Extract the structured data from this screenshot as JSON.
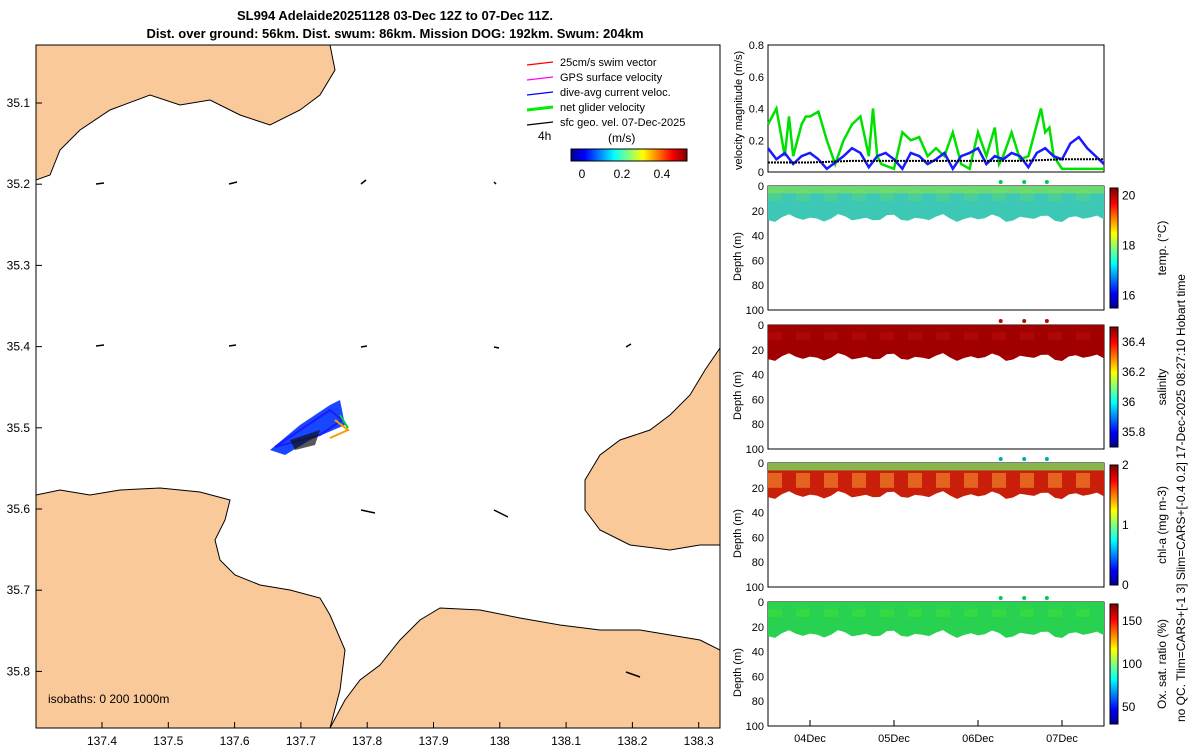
{
  "header": {
    "line1": "SL994 Adelaide20251128 03-Dec 12Z to 07-Dec 11Z.",
    "line2": "Dist. over ground: 56km. Dist. swum: 86km. Mission DOG: 192km. Swum: 204km"
  },
  "map": {
    "lon_ticks": [
      "137.4",
      "137.5",
      "137.6",
      "137.7",
      "137.8",
      "137.9",
      "138",
      "138.1",
      "138.2",
      "138.3"
    ],
    "lat_ticks": [
      "35.1",
      "35.2",
      "35.3",
      "35.4",
      "35.5",
      "35.6",
      "35.7",
      "35.8"
    ],
    "isobaths_label": "isobaths: 0   200  1000m",
    "legend": [
      {
        "label": "25cm/s swim vector",
        "color": "#ff0000"
      },
      {
        "label": "GPS surface velocity",
        "color": "#ff00ff"
      },
      {
        "label": "dive-avg current veloc.",
        "color": "#0000ff"
      },
      {
        "label": "net glider velocity",
        "color": "#00ee00"
      },
      {
        "label": "sfc geo. vel. 07-Dec-2025",
        "color": "#000000"
      }
    ],
    "legend_interval": "4h",
    "colorbar_unit": "(m/s)",
    "colorbar_ticks": [
      "0",
      "0.2",
      "0.4"
    ],
    "land_color": "#f9c99a"
  },
  "chart_data": [
    {
      "type": "line",
      "ylabel": "velocity magnitude (m/s)",
      "ylim": [
        0,
        0.8
      ],
      "yticks": [
        "0",
        "0.2",
        "0.4",
        "0.6",
        "0.8"
      ],
      "xlim_days": [
        3.5,
        7.5
      ],
      "series": [
        {
          "name": "net glider velocity",
          "color": "#00e000",
          "x": [
            3.5,
            3.6,
            3.65,
            3.7,
            3.75,
            3.8,
            3.9,
            3.95,
            4.0,
            4.1,
            4.2,
            4.3,
            4.4,
            4.5,
            4.6,
            4.7,
            4.75,
            4.8,
            4.85,
            5.0,
            5.1,
            5.2,
            5.3,
            5.4,
            5.5,
            5.6,
            5.7,
            5.8,
            5.9,
            6.0,
            6.1,
            6.2,
            6.25,
            6.3,
            6.4,
            6.5,
            6.6,
            6.7,
            6.75,
            6.8,
            6.85,
            6.9,
            7.0,
            7.1,
            7.2,
            7.3,
            7.5
          ],
          "y": [
            0.3,
            0.4,
            0.25,
            0.1,
            0.35,
            0.1,
            0.3,
            0.35,
            0.35,
            0.38,
            0.2,
            0.05,
            0.2,
            0.3,
            0.35,
            0.1,
            0.4,
            0.1,
            0.05,
            0.02,
            0.25,
            0.2,
            0.22,
            0.1,
            0.15,
            0.1,
            0.25,
            0.05,
            0.02,
            0.25,
            0.1,
            0.28,
            0.05,
            0.1,
            0.25,
            0.08,
            0.1,
            0.3,
            0.4,
            0.25,
            0.28,
            0.1,
            0.02,
            0.02,
            0.02,
            0.02,
            0.02
          ]
        },
        {
          "name": "dive-avg current veloc.",
          "color": "#1a1aff",
          "x": [
            3.5,
            3.6,
            3.7,
            3.8,
            3.9,
            4.0,
            4.1,
            4.2,
            4.3,
            4.4,
            4.5,
            4.6,
            4.7,
            4.8,
            4.9,
            5.0,
            5.1,
            5.2,
            5.3,
            5.4,
            5.5,
            5.6,
            5.7,
            5.8,
            5.9,
            6.0,
            6.1,
            6.2,
            6.3,
            6.4,
            6.5,
            6.6,
            6.7,
            6.8,
            6.9,
            7.0,
            7.1,
            7.2,
            7.3,
            7.4,
            7.5
          ],
          "y": [
            0.15,
            0.08,
            0.12,
            0.05,
            0.1,
            0.12,
            0.08,
            0.02,
            0.06,
            0.1,
            0.15,
            0.12,
            0.03,
            0.1,
            0.12,
            0.08,
            0.02,
            0.12,
            0.1,
            0.05,
            0.08,
            0.12,
            0.02,
            0.1,
            0.12,
            0.15,
            0.05,
            0.1,
            0.08,
            0.12,
            0.1,
            0.03,
            0.12,
            0.15,
            0.1,
            0.08,
            0.18,
            0.22,
            0.15,
            0.1,
            0.05
          ]
        },
        {
          "name": "sfc geo. vel.",
          "color": "#000000",
          "x": [
            3.5,
            4.0,
            4.5,
            5.0,
            5.5,
            6.0,
            6.5,
            7.0,
            7.5
          ],
          "y": [
            0.06,
            0.06,
            0.07,
            0.07,
            0.07,
            0.07,
            0.07,
            0.08,
            0.08
          ]
        }
      ],
      "points": []
    },
    {
      "type": "heatmap",
      "label": "temp. (°C)",
      "ylabel": "Depth (m)",
      "cticks": [
        "16",
        "18",
        "20"
      ],
      "clim": [
        15.5,
        20.3
      ],
      "value": 17.3,
      "yticks": [
        "0",
        "20",
        "40",
        "60",
        "80",
        "100"
      ],
      "marker_color": "#00cc44"
    },
    {
      "type": "heatmap",
      "label": "salinity",
      "ylabel": "Depth (m)",
      "cticks": [
        "35.8",
        "36",
        "36.2",
        "36.4"
      ],
      "clim": [
        35.7,
        36.5
      ],
      "value": 36.5,
      "yticks": [
        "0",
        "20",
        "40",
        "60",
        "80",
        "100"
      ],
      "marker_color": "#aa1100"
    },
    {
      "type": "heatmap",
      "label": "chl-a (mg m-3)",
      "ylabel": "Depth (m)",
      "cticks": [
        "0",
        "1",
        "2"
      ],
      "clim": [
        0,
        2
      ],
      "value": 1.8,
      "yticks": [
        "0",
        "20",
        "40",
        "60",
        "80",
        "100"
      ],
      "marker_color": "#00aaaa"
    },
    {
      "type": "heatmap",
      "label": "Ox. sat. ratio (%)",
      "ylabel": "Depth (m)",
      "cticks": [
        "50",
        "100",
        "150"
      ],
      "clim": [
        30,
        170
      ],
      "value": 100,
      "yticks": [
        "0",
        "20",
        "40",
        "60",
        "80",
        "100"
      ],
      "marker_color": "#00cc44"
    }
  ],
  "time_ticks": [
    "04Dec",
    "05Dec",
    "06Dec",
    "07Dec"
  ],
  "side_note": "no QC. Tlim=CARS+[-1 3] Slim=CARS+[-0.4 0.2] 17-Dec-2025 08:27:10 Hobart time"
}
